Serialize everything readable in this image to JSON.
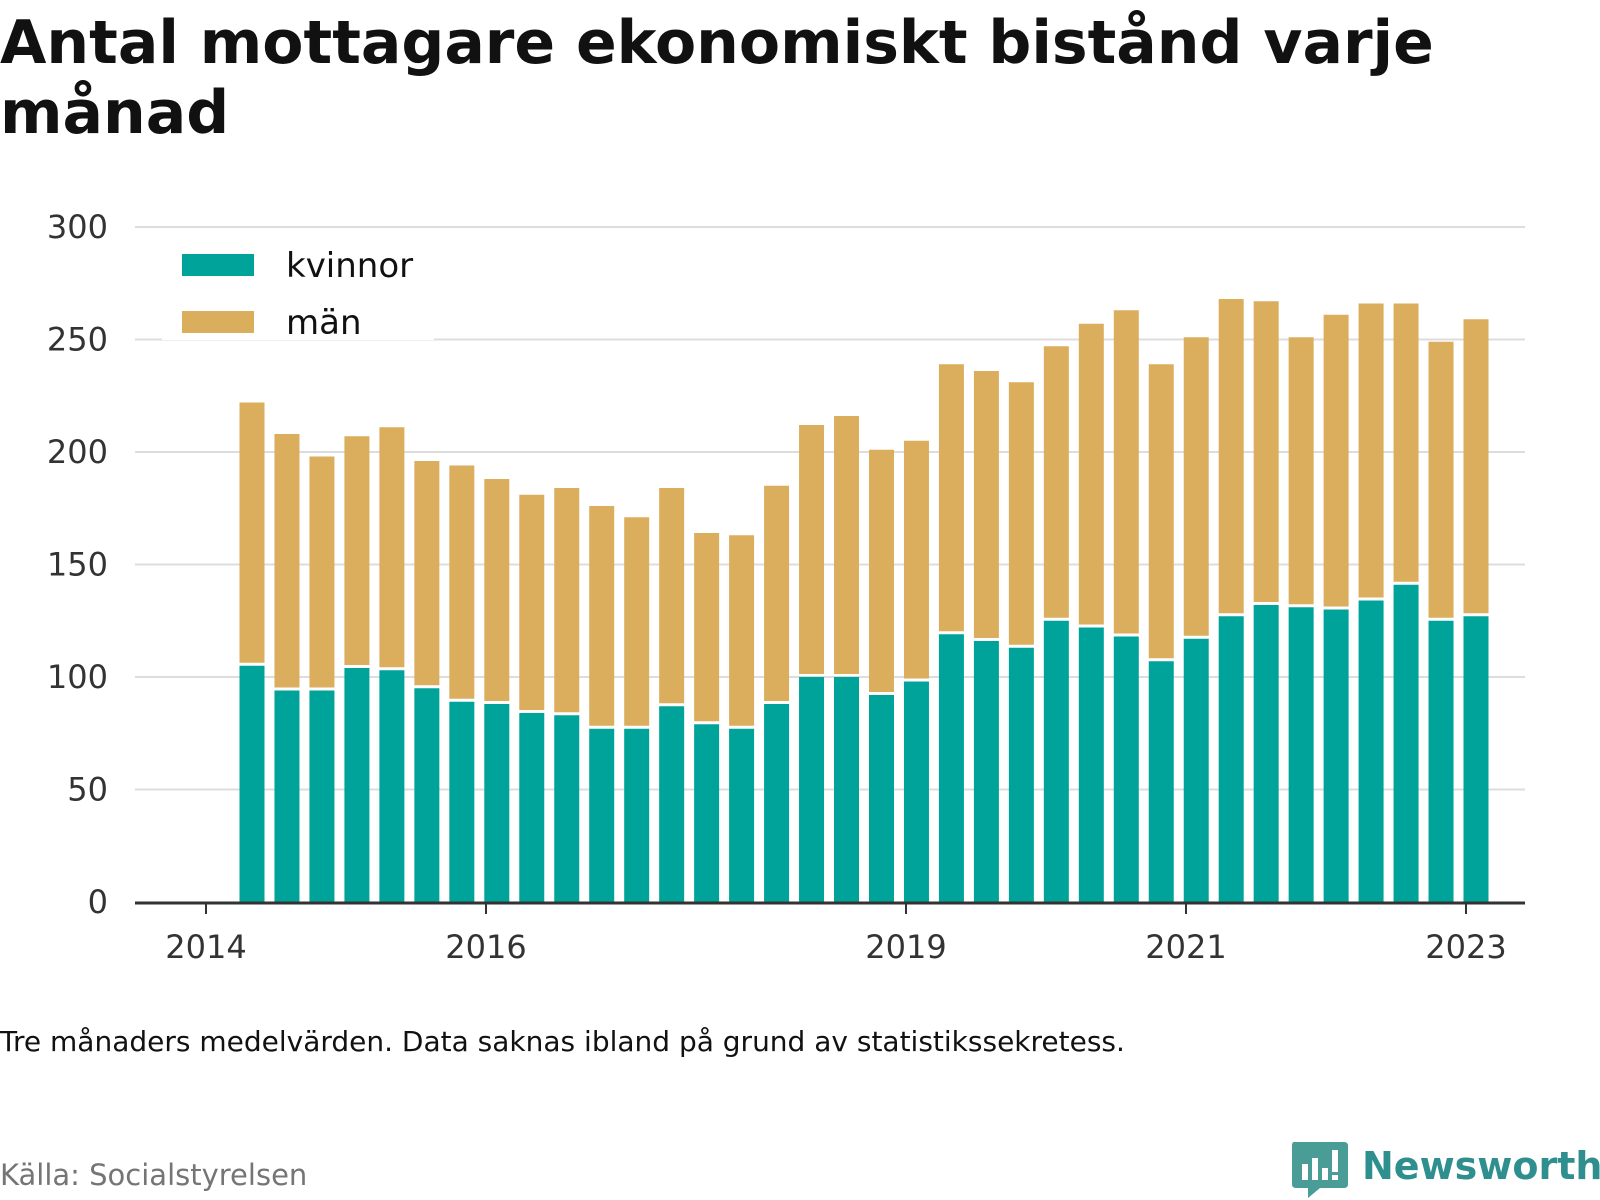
{
  "title": "Antal mottagare ekonomiskt bistånd varje månad",
  "note": "Tre månaders medelvärden. Data saknas ibland på grund av statistikssekretess.",
  "source": "Källa: Socialstyrelsen",
  "brand": "Newsworthy",
  "colors": {
    "kvinnor": "#00A39A",
    "man": "#DBAE5E",
    "grid": "#dddddd",
    "axis": "#333333",
    "brand": "#2f8f8f"
  },
  "chart_data": {
    "type": "bar",
    "stacked": true,
    "title": "Antal mottagare ekonomiskt bistånd varje månad",
    "xlabel": "",
    "ylabel": "",
    "ylim": [
      0,
      300
    ],
    "yticks": [
      0,
      50,
      100,
      150,
      200,
      250,
      300
    ],
    "xticks": [
      "2014",
      "2016",
      "2019",
      "2021",
      "2023"
    ],
    "grid": true,
    "legend_position": "top-left",
    "series": [
      {
        "name": "kvinnor",
        "color": "#00A39A",
        "values": [
          105,
          94,
          94,
          104,
          103,
          95,
          89,
          88,
          84,
          83,
          77,
          77,
          87,
          79,
          77,
          88,
          100,
          100,
          92,
          98,
          119,
          116,
          113,
          125,
          122,
          118,
          107,
          117,
          127,
          132,
          131,
          130,
          134,
          141,
          125,
          127
        ]
      },
      {
        "name": "män",
        "color": "#DBAE5E",
        "values": [
          117,
          114,
          104,
          103,
          108,
          101,
          105,
          100,
          97,
          101,
          99,
          94,
          97,
          85,
          86,
          97,
          112,
          116,
          109,
          107,
          120,
          120,
          118,
          122,
          135,
          145,
          132,
          134,
          141,
          135,
          120,
          131,
          132,
          125,
          124,
          132
        ]
      }
    ]
  }
}
